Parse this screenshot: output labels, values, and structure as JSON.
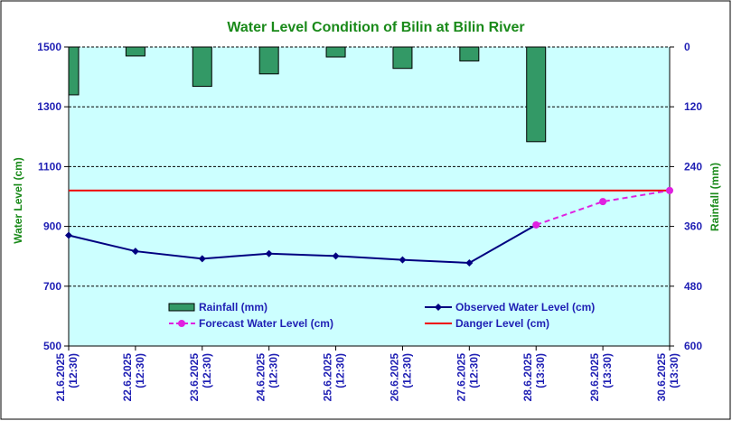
{
  "chart_data": {
    "type": "line",
    "title": "Water Level Condition of Bilin at Bilin River",
    "ylabel_left": "Water Level (cm)",
    "ylabel_right": "Rainfall (mm)",
    "ylim_left": [
      500,
      1500
    ],
    "yticks_left": [
      500,
      700,
      900,
      1100,
      1300,
      1500
    ],
    "ylim_right": [
      600,
      0
    ],
    "yticks_right": [
      0,
      120,
      240,
      360,
      480,
      600
    ],
    "categories": [
      [
        "21.6.2025",
        "(12:30)"
      ],
      [
        "22.6.2025",
        "(12:30)"
      ],
      [
        "23.6.2025",
        "(12:30)"
      ],
      [
        "24.6.2025",
        "(12:30)"
      ],
      [
        "25.6.2025",
        "(12:30)"
      ],
      [
        "26.6.2025",
        "(12:30)"
      ],
      [
        "27.6.2025",
        "(12:30)"
      ],
      [
        "28.6.2025",
        "(13:30)"
      ],
      [
        "29.6.2025",
        "(13:30)"
      ],
      [
        "30.6.2025",
        "(13:30)"
      ]
    ],
    "series": [
      {
        "name": "Rainfall (mm)",
        "kind": "bar",
        "axis": "right",
        "color": "#339966",
        "values": [
          96,
          18,
          79,
          54,
          20,
          43,
          28,
          190,
          null,
          null
        ]
      },
      {
        "name": "Observed Water Level (cm)",
        "kind": "line",
        "axis": "left",
        "color": "#000080",
        "values": [
          870,
          817,
          792,
          809,
          801,
          788,
          778,
          905,
          null,
          null
        ]
      },
      {
        "name": "Forecast Water Level (cm)",
        "kind": "dashed-line",
        "axis": "left",
        "color": "#e020e0",
        "values": [
          null,
          null,
          null,
          null,
          null,
          null,
          null,
          905,
          983,
          1020
        ]
      },
      {
        "name": "Danger Level (cm)",
        "kind": "hline",
        "axis": "left",
        "color": "#ee0000",
        "value": 1020
      }
    ],
    "plot_background": "#ccffff",
    "grid": "horizontal-dashed",
    "legend_position": "inside-bottom"
  }
}
